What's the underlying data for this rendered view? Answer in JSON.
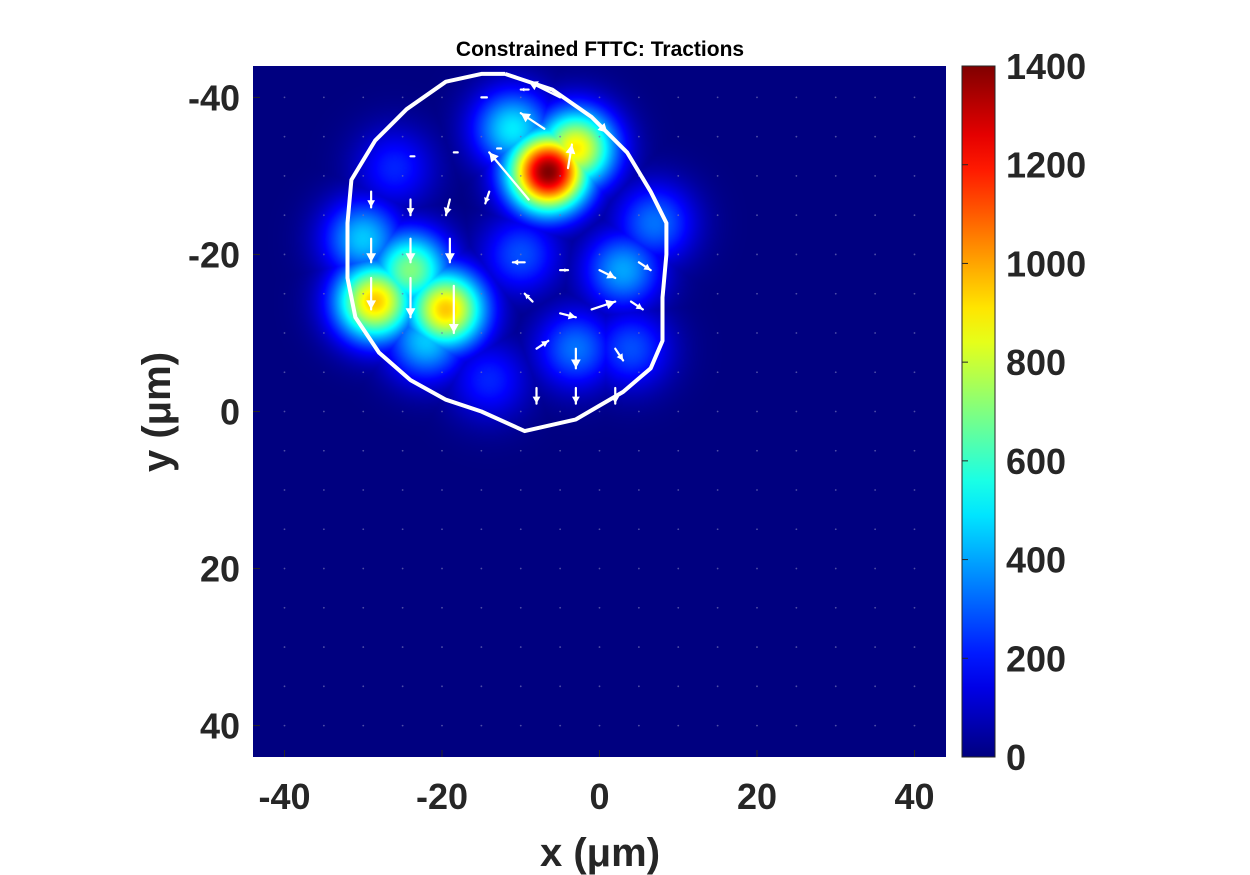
{
  "chart_data": {
    "type": "heatmap",
    "title": "Constrained FTTC: Tractions",
    "xlabel": "x (μm)",
    "ylabel": "y (μm)",
    "xlim": [
      -44,
      44
    ],
    "ylim": [
      -44,
      44
    ],
    "y_reversed": true,
    "x_ticks": [
      "-40",
      "-20",
      "0",
      "20",
      "40"
    ],
    "y_ticks": [
      "-40",
      "-20",
      "0",
      "20",
      "40"
    ],
    "colorbar": {
      "colormap": "jet",
      "range": [
        0,
        1400
      ],
      "ticks": [
        "0",
        "200",
        "400",
        "600",
        "800",
        "1000",
        "1200",
        "1400"
      ]
    },
    "background_value": 0,
    "hotspots": [
      {
        "x": -6.5,
        "y": -30.5,
        "magnitude": 1400
      },
      {
        "x": -3,
        "y": -33.5,
        "magnitude": 900
      },
      {
        "x": -11,
        "y": -36,
        "magnitude": 500
      },
      {
        "x": -28.5,
        "y": -14,
        "magnitude": 950
      },
      {
        "x": -19.5,
        "y": -13,
        "magnitude": 950
      },
      {
        "x": -24,
        "y": -18,
        "magnitude": 700
      },
      {
        "x": -30,
        "y": -22,
        "magnitude": 450
      },
      {
        "x": -22,
        "y": -9,
        "magnitude": 450
      },
      {
        "x": 3,
        "y": -18,
        "magnitude": 400
      },
      {
        "x": 7,
        "y": -24,
        "magnitude": 330
      },
      {
        "x": -10,
        "y": -20,
        "magnitude": 280
      },
      {
        "x": -3,
        "y": -8,
        "magnitude": 330
      },
      {
        "x": 4,
        "y": -8,
        "magnitude": 280
      },
      {
        "x": -14,
        "y": -4,
        "magnitude": 220
      },
      {
        "x": -26,
        "y": -31,
        "magnitude": 220
      }
    ],
    "cell_outline": [
      [
        -12,
        -43
      ],
      [
        -6,
        -41
      ],
      [
        -1,
        -37.5
      ],
      [
        3.5,
        -33
      ],
      [
        6.5,
        -28
      ],
      [
        8.5,
        -24
      ],
      [
        8.5,
        -20
      ],
      [
        8,
        -14.5
      ],
      [
        8,
        -9
      ],
      [
        6.5,
        -5.5
      ],
      [
        3,
        -2.5
      ],
      [
        -3,
        1
      ],
      [
        -9.5,
        2.5
      ],
      [
        -15,
        0
      ],
      [
        -19.5,
        -1.5
      ],
      [
        -24,
        -4
      ],
      [
        -28,
        -7.5
      ],
      [
        -31,
        -12
      ],
      [
        -32,
        -17
      ],
      [
        -32,
        -24
      ],
      [
        -31.5,
        -29.5
      ],
      [
        -28.5,
        -34.5
      ],
      [
        -24.5,
        -38.5
      ],
      [
        -19.5,
        -42
      ],
      [
        -15,
        -43
      ]
    ],
    "traction_vectors": [
      {
        "x": -5,
        "y": -40,
        "u": -4,
        "v": -2
      },
      {
        "x": -9,
        "y": -41,
        "u": -1,
        "v": 0
      },
      {
        "x": -1,
        "y": -37.5,
        "u": 2,
        "v": 2
      },
      {
        "x": -7,
        "y": -36,
        "u": -3,
        "v": -2
      },
      {
        "x": -9,
        "y": -27,
        "u": -5,
        "v": -6
      },
      {
        "x": -4,
        "y": -31,
        "u": 0.5,
        "v": -3
      },
      {
        "x": -29,
        "y": -28,
        "u": 0,
        "v": 2
      },
      {
        "x": -24,
        "y": -27,
        "u": 0,
        "v": 2
      },
      {
        "x": -19,
        "y": -27,
        "u": -0.5,
        "v": 2
      },
      {
        "x": -14,
        "y": -28,
        "u": -0.5,
        "v": 1.5
      },
      {
        "x": -29,
        "y": -22,
        "u": 0,
        "v": 3
      },
      {
        "x": -24,
        "y": -22,
        "u": 0,
        "v": 3
      },
      {
        "x": -19,
        "y": -22,
        "u": 0,
        "v": 3
      },
      {
        "x": -29,
        "y": -17,
        "u": 0,
        "v": 4
      },
      {
        "x": -24,
        "y": -17,
        "u": 0,
        "v": 5
      },
      {
        "x": -18.5,
        "y": -16,
        "u": 0,
        "v": 6
      },
      {
        "x": -9.5,
        "y": -19,
        "u": -1.5,
        "v": 0
      },
      {
        "x": -5,
        "y": -18,
        "u": 1,
        "v": 0
      },
      {
        "x": 0,
        "y": -18,
        "u": 2,
        "v": 1
      },
      {
        "x": 5,
        "y": -19,
        "u": 1.5,
        "v": 1
      },
      {
        "x": -8.5,
        "y": -14,
        "u": -1,
        "v": -1
      },
      {
        "x": -5,
        "y": -12.5,
        "u": 2,
        "v": 0.5
      },
      {
        "x": -1,
        "y": -13,
        "u": 3,
        "v": -1
      },
      {
        "x": 4,
        "y": -14,
        "u": 1.5,
        "v": 1
      },
      {
        "x": -8,
        "y": -8,
        "u": 1.5,
        "v": -1
      },
      {
        "x": -3,
        "y": -8,
        "u": 0,
        "v": 2.5
      },
      {
        "x": 2,
        "y": -8,
        "u": 1,
        "v": 1.5
      },
      {
        "x": -8,
        "y": -3,
        "u": 0,
        "v": 2
      },
      {
        "x": -3,
        "y": -3,
        "u": 0,
        "v": 2
      },
      {
        "x": 2,
        "y": -3,
        "u": 0,
        "v": 2
      },
      {
        "x": -24,
        "y": -32.5,
        "u": 0.5,
        "v": 0
      },
      {
        "x": -18.5,
        "y": -33,
        "u": 0.5,
        "v": 0
      },
      {
        "x": -13,
        "y": -33.5,
        "u": 0.5,
        "v": 0
      },
      {
        "x": -15,
        "y": -40,
        "u": 0.7,
        "v": 0
      }
    ],
    "colors": {
      "outline": "#ffffff",
      "vectors": "#ffffff",
      "background_min": "#00008f",
      "text": "#262626",
      "title": "#000000"
    }
  }
}
